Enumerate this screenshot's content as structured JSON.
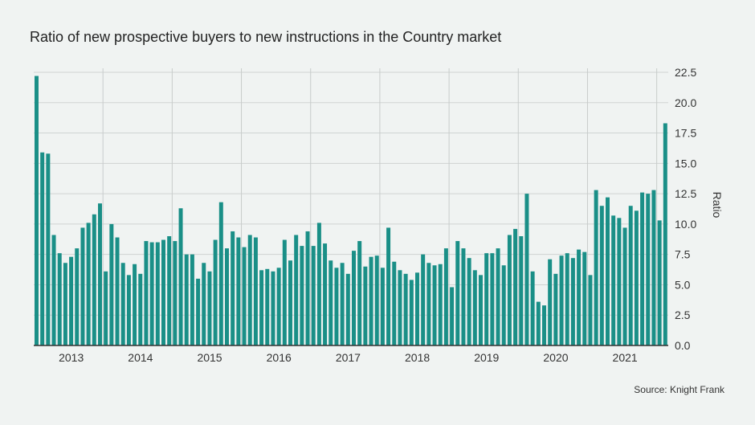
{
  "chart_data": {
    "type": "bar",
    "title": "Ratio of new prospective buyers to new instructions in the Country market",
    "ylabel": "Ratio",
    "xlabel": "",
    "source": "Source: Knight Frank",
    "ylim": [
      0,
      22.5
    ],
    "yticks": [
      "0.0",
      "2.5",
      "5.0",
      "7.5",
      "10.0",
      "12.5",
      "15.0",
      "17.5",
      "20.0",
      "22.5"
    ],
    "ytick_values": [
      0,
      2.5,
      5,
      7.5,
      10,
      12.5,
      15,
      17.5,
      20,
      22.5
    ],
    "xticks": [
      "2013",
      "2014",
      "2015",
      "2016",
      "2017",
      "2018",
      "2019",
      "2020",
      "2021"
    ],
    "start_month": "2012-07",
    "grid": true,
    "color": "#1a8f87",
    "values": [
      22.2,
      15.9,
      15.8,
      9.1,
      7.6,
      6.8,
      7.3,
      8.0,
      9.7,
      10.1,
      10.8,
      11.7,
      6.1,
      10.0,
      8.9,
      6.8,
      5.8,
      6.7,
      5.9,
      8.6,
      8.5,
      8.5,
      8.7,
      9.0,
      8.6,
      11.3,
      7.5,
      7.5,
      5.5,
      6.8,
      6.1,
      8.7,
      11.8,
      8.0,
      9.4,
      8.9,
      8.1,
      9.1,
      8.9,
      6.2,
      6.3,
      6.1,
      6.4,
      8.7,
      7.0,
      9.1,
      8.2,
      9.4,
      8.2,
      10.1,
      8.4,
      7.0,
      6.4,
      6.8,
      5.9,
      7.8,
      8.6,
      6.5,
      7.3,
      7.4,
      6.4,
      9.7,
      6.9,
      6.2,
      5.9,
      5.4,
      6.0,
      7.5,
      6.8,
      6.6,
      6.7,
      8.0,
      4.8,
      8.6,
      8.0,
      7.2,
      6.2,
      5.8,
      7.6,
      7.6,
      8.0,
      6.6,
      9.1,
      9.6,
      9.0,
      12.5,
      6.1,
      3.6,
      3.3,
      7.1,
      5.9,
      7.4,
      7.6,
      7.2,
      7.9,
      7.7,
      5.8,
      12.8,
      11.5,
      12.2,
      10.7,
      10.5,
      9.7,
      11.5,
      11.1,
      12.6,
      12.5,
      12.8,
      10.3,
      18.3
    ]
  }
}
